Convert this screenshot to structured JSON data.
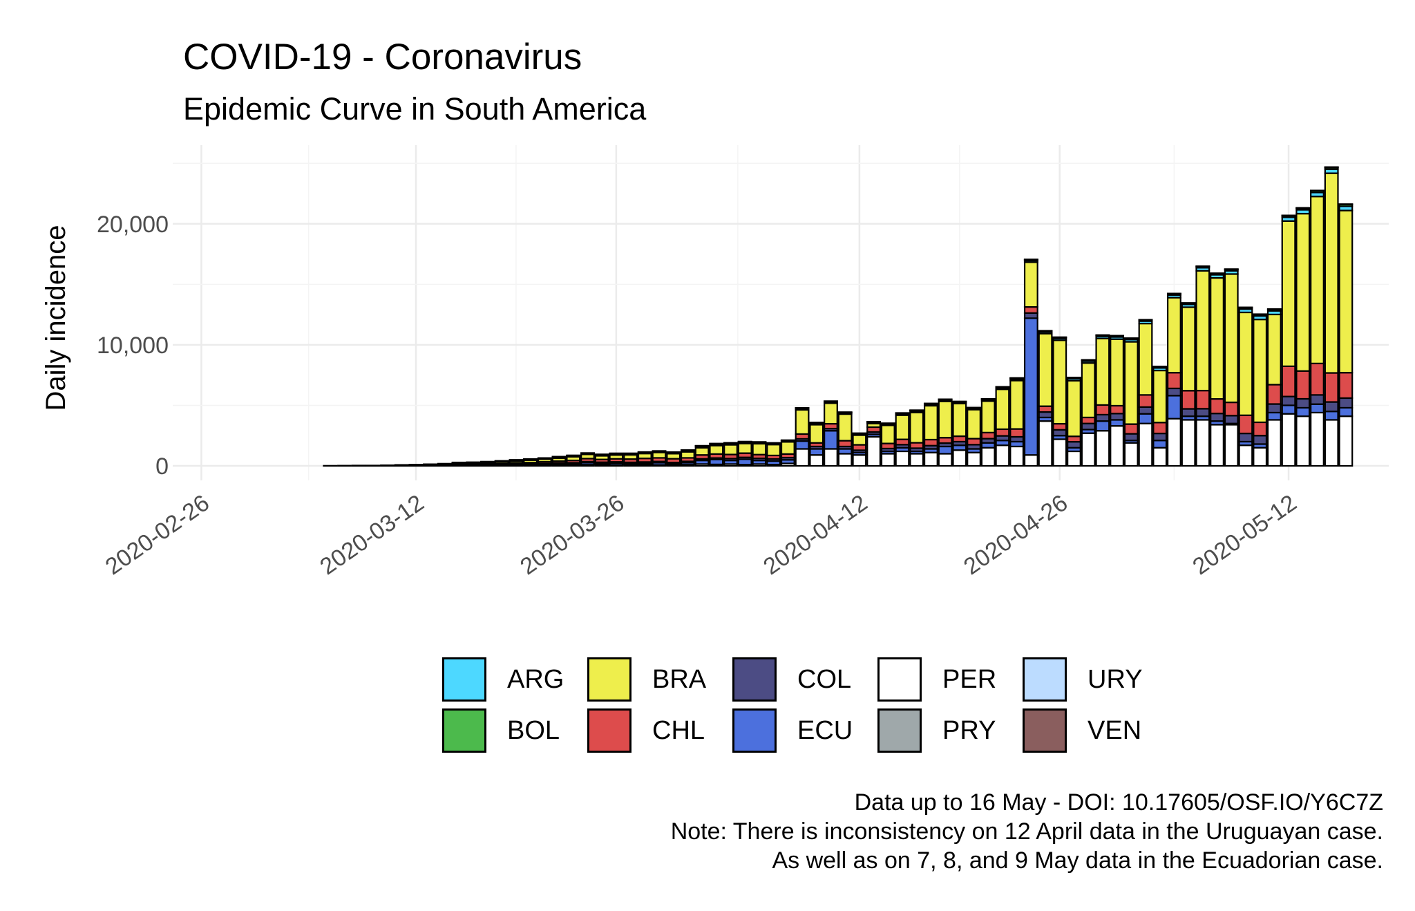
{
  "chart_data": {
    "type": "bar",
    "stacked": true,
    "title": "COVID-19 - Coronavirus",
    "subtitle": "Epidemic Curve in South America",
    "xlabel": "",
    "ylabel": "Daily incidence",
    "ylim": [
      -1200,
      26500
    ],
    "xlim": [
      "2020-02-24",
      "2020-05-19"
    ],
    "yticks": [
      0,
      10000,
      20000
    ],
    "ytick_labels": [
      "0",
      "10,000",
      "20,000"
    ],
    "xticks": [
      "2020-02-26",
      "2020-03-12",
      "2020-03-26",
      "2020-04-12",
      "2020-04-26",
      "2020-05-12"
    ],
    "grid": true,
    "legend_position": "bottom",
    "series_colors": {
      "ARG": "#4dd8ff",
      "BOL": "#4cba4c",
      "BRA": "#eeee4c",
      "CHL": "#dd4c4c",
      "COL": "#4c4c84",
      "ECU": "#4c70dd",
      "PER": "#ffffff",
      "PRY": "#9fa8aa",
      "URY": "#bcdcff",
      "VEN": "#8a5e5e"
    },
    "legend_order": [
      "ARG",
      "BOL",
      "BRA",
      "CHL",
      "COL",
      "ECU",
      "PER",
      "PRY",
      "URY",
      "VEN"
    ],
    "stack_order": [
      "PER",
      "ECU",
      "COL",
      "CHL",
      "BRA",
      "ARG",
      "BOL",
      "PRY",
      "URY",
      "VEN"
    ],
    "start_date": "2020-02-26",
    "categories": [
      "02-26",
      "02-27",
      "02-28",
      "02-29",
      "03-01",
      "03-02",
      "03-03",
      "03-04",
      "03-05",
      "03-06",
      "03-07",
      "03-08",
      "03-09",
      "03-10",
      "03-11",
      "03-12",
      "03-13",
      "03-14",
      "03-15",
      "03-16",
      "03-17",
      "03-18",
      "03-19",
      "03-20",
      "03-21",
      "03-22",
      "03-23",
      "03-24",
      "03-25",
      "03-26",
      "03-27",
      "03-28",
      "03-29",
      "03-30",
      "03-31",
      "04-01",
      "04-02",
      "04-03",
      "04-04",
      "04-05",
      "04-06",
      "04-07",
      "04-08",
      "04-09",
      "04-10",
      "04-11",
      "04-12",
      "04-13",
      "04-14",
      "04-15",
      "04-16",
      "04-17",
      "04-18",
      "04-19",
      "04-20",
      "04-21",
      "04-22",
      "04-23",
      "04-24",
      "04-25",
      "04-26",
      "04-27",
      "04-28",
      "04-29",
      "04-30",
      "05-01",
      "05-02",
      "05-03",
      "05-04",
      "05-05",
      "05-06",
      "05-07",
      "05-08",
      "05-09",
      "05-10",
      "05-11",
      "05-12",
      "05-13",
      "05-14",
      "05-15",
      "05-16"
    ],
    "series": [
      {
        "name": "PER",
        "values": [
          0,
          0,
          0,
          0,
          0,
          0,
          0,
          0,
          0,
          0,
          0,
          0,
          0,
          0,
          0,
          0,
          0,
          10,
          30,
          20,
          30,
          20,
          60,
          50,
          50,
          80,
          60,
          100,
          120,
          80,
          90,
          120,
          80,
          60,
          100,
          150,
          120,
          150,
          100,
          150,
          100,
          200,
          1400,
          900,
          1400,
          1000,
          900,
          2400,
          1000,
          1200,
          1000,
          1100,
          1000,
          1300,
          1100,
          1500,
          1700,
          1600,
          900,
          3700,
          2200,
          1200,
          2700,
          2900,
          3300,
          1900,
          3500,
          1500,
          3900,
          3800,
          3800,
          3400,
          3400,
          1700,
          1500,
          3800,
          4300,
          4100,
          4400,
          3800,
          4100
        ]
      },
      {
        "name": "ECU",
        "values": [
          0,
          0,
          0,
          0,
          0,
          0,
          0,
          0,
          0,
          0,
          0,
          0,
          0,
          0,
          0,
          0,
          0,
          0,
          10,
          20,
          40,
          30,
          40,
          40,
          80,
          100,
          120,
          160,
          100,
          150,
          130,
          100,
          180,
          100,
          160,
          300,
          400,
          300,
          450,
          300,
          300,
          300,
          650,
          500,
          1500,
          400,
          200,
          200,
          200,
          300,
          200,
          300,
          600,
          400,
          300,
          400,
          400,
          400,
          11300,
          300,
          300,
          300,
          300,
          800,
          500,
          200,
          800,
          600,
          1900,
          300,
          300,
          300,
          100,
          300,
          300,
          600,
          700,
          700,
          700,
          700,
          700
        ]
      },
      {
        "name": "COL",
        "values": [
          0,
          0,
          0,
          0,
          0,
          0,
          0,
          0,
          0,
          0,
          0,
          0,
          0,
          0,
          0,
          0,
          20,
          20,
          40,
          30,
          30,
          50,
          40,
          60,
          70,
          60,
          80,
          90,
          80,
          100,
          70,
          100,
          100,
          120,
          110,
          130,
          130,
          150,
          150,
          170,
          170,
          180,
          180,
          200,
          180,
          200,
          190,
          200,
          230,
          250,
          260,
          270,
          280,
          300,
          350,
          350,
          380,
          400,
          430,
          450,
          480,
          490,
          500,
          530,
          520,
          550,
          560,
          580,
          600,
          610,
          620,
          630,
          650,
          680,
          700,
          710,
          730,
          740,
          760,
          780,
          800
        ]
      },
      {
        "name": "CHL",
        "values": [
          0,
          0,
          0,
          0,
          0,
          0,
          0,
          0,
          0,
          10,
          20,
          20,
          20,
          20,
          30,
          30,
          40,
          50,
          70,
          80,
          90,
          100,
          110,
          120,
          140,
          150,
          190,
          250,
          230,
          250,
          270,
          300,
          300,
          310,
          290,
          320,
          330,
          340,
          350,
          310,
          290,
          300,
          400,
          300,
          400,
          480,
          450,
          400,
          420,
          440,
          450,
          500,
          450,
          450,
          500,
          500,
          550,
          650,
          500,
          480,
          500,
          450,
          500,
          800,
          650,
          800,
          1000,
          900,
          1300,
          1500,
          1500,
          1200,
          1100,
          1500,
          1100,
          1600,
          2500,
          2300,
          2600,
          2400,
          2100
        ]
      },
      {
        "name": "BRA",
        "values": [
          0,
          0,
          0,
          0,
          0,
          0,
          0,
          0,
          0,
          0,
          0,
          10,
          10,
          20,
          40,
          50,
          40,
          60,
          90,
          90,
          100,
          140,
          150,
          200,
          210,
          240,
          300,
          350,
          300,
          320,
          350,
          400,
          450,
          420,
          500,
          600,
          700,
          800,
          800,
          900,
          900,
          1000,
          2000,
          1500,
          1700,
          2200,
          800,
          300,
          1500,
          2000,
          2500,
          2800,
          3000,
          2700,
          2400,
          2600,
          3300,
          4000,
          3700,
          6000,
          6900,
          4600,
          4500,
          5500,
          5500,
          6800,
          5900,
          4300,
          6200,
          6900,
          9900,
          10000,
          10600,
          8500,
          8500,
          5800,
          12000,
          13000,
          13800,
          16500,
          13400
        ]
      },
      {
        "name": "ARG",
        "values": [
          0,
          0,
          0,
          0,
          0,
          0,
          0,
          0,
          0,
          0,
          0,
          0,
          0,
          10,
          10,
          10,
          20,
          20,
          10,
          20,
          20,
          20,
          40,
          50,
          60,
          90,
          70,
          70,
          80,
          90,
          80,
          80,
          70,
          80,
          100,
          110,
          110,
          110,
          100,
          90,
          80,
          80,
          100,
          120,
          100,
          90,
          90,
          80,
          100,
          110,
          120,
          110,
          100,
          90,
          80,
          100,
          110,
          120,
          130,
          140,
          150,
          160,
          150,
          170,
          180,
          190,
          200,
          210,
          220,
          230,
          250,
          260,
          270,
          280,
          290,
          300,
          310,
          320,
          330,
          340,
          350
        ]
      },
      {
        "name": "BOL",
        "values": [
          0,
          0,
          0,
          0,
          0,
          0,
          0,
          0,
          0,
          0,
          0,
          0,
          0,
          0,
          0,
          5,
          5,
          5,
          10,
          10,
          10,
          15,
          15,
          15,
          15,
          20,
          20,
          20,
          20,
          25,
          25,
          25,
          30,
          30,
          30,
          30,
          30,
          35,
          35,
          35,
          35,
          40,
          40,
          40,
          45,
          45,
          45,
          45,
          50,
          50,
          50,
          55,
          55,
          55,
          60,
          60,
          65,
          65,
          70,
          70,
          75,
          75,
          80,
          80,
          85,
          85,
          90,
          90,
          95,
          95,
          100,
          100,
          110,
          110,
          120,
          120,
          130,
          130,
          140,
          140,
          150
        ]
      },
      {
        "name": "PRY",
        "values": [
          0,
          0,
          0,
          0,
          0,
          0,
          0,
          0,
          0,
          0,
          0,
          0,
          0,
          0,
          0,
          2,
          2,
          2,
          3,
          3,
          3,
          5,
          5,
          5,
          5,
          5,
          5,
          5,
          5,
          5,
          5,
          5,
          5,
          5,
          5,
          5,
          5,
          5,
          5,
          5,
          5,
          5,
          5,
          5,
          5,
          5,
          5,
          5,
          5,
          5,
          5,
          5,
          5,
          10,
          10,
          10,
          10,
          10,
          10,
          10,
          10,
          10,
          10,
          10,
          10,
          10,
          10,
          10,
          10,
          10,
          10,
          10,
          10,
          10,
          10,
          10,
          10,
          10,
          10,
          10,
          10
        ]
      },
      {
        "name": "URY",
        "values": [
          0,
          0,
          0,
          0,
          0,
          0,
          0,
          0,
          0,
          0,
          0,
          0,
          0,
          0,
          0,
          0,
          2,
          5,
          10,
          20,
          20,
          25,
          30,
          20,
          15,
          10,
          15,
          10,
          10,
          10,
          10,
          10,
          10,
          10,
          10,
          10,
          10,
          10,
          10,
          10,
          10,
          10,
          10,
          10,
          10,
          10,
          10,
          10,
          10,
          10,
          10,
          10,
          10,
          10,
          10,
          10,
          10,
          10,
          10,
          10,
          10,
          10,
          10,
          10,
          10,
          10,
          10,
          10,
          10,
          10,
          10,
          10,
          10,
          10,
          10,
          10,
          10,
          10,
          10,
          10,
          10
        ]
      },
      {
        "name": "VEN",
        "values": [
          0,
          0,
          0,
          0,
          0,
          0,
          0,
          0,
          0,
          0,
          0,
          0,
          0,
          0,
          0,
          0,
          2,
          5,
          10,
          5,
          5,
          5,
          5,
          5,
          5,
          5,
          5,
          5,
          5,
          5,
          5,
          5,
          5,
          5,
          5,
          5,
          5,
          5,
          5,
          5,
          5,
          5,
          5,
          5,
          5,
          5,
          5,
          5,
          5,
          5,
          5,
          5,
          5,
          5,
          5,
          5,
          5,
          5,
          5,
          5,
          5,
          5,
          5,
          5,
          5,
          5,
          5,
          5,
          5,
          5,
          5,
          5,
          5,
          5,
          5,
          5,
          5,
          5,
          5,
          5,
          5
        ]
      }
    ]
  },
  "caption": {
    "line1": "Data up to 16 May - DOI: 10.17605/OSF.IO/Y6C7Z",
    "line2": "Note: There is inconsistency on 12 April data in the Uruguayan case.",
    "line3": "As well as on 7, 8, and 9 May data in the Ecuadorian case."
  }
}
